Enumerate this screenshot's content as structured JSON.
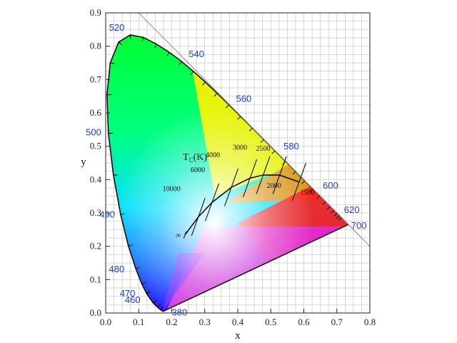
{
  "chart_data": {
    "type": "scatter",
    "xlabel": "x",
    "ylabel": "y",
    "xlim": [
      0.0,
      0.8
    ],
    "ylim": [
      0.0,
      0.9
    ],
    "x_ticks": [
      "0.0",
      "0.1",
      "0.2",
      "0.3",
      "0.4",
      "0.5",
      "0.6",
      "0.7",
      "0.8"
    ],
    "y_ticks": [
      "0.0",
      "0.1",
      "0.2",
      "0.3",
      "0.4",
      "0.5",
      "0.6",
      "0.7",
      "0.8",
      "0.9"
    ],
    "grid": true,
    "spectral_locus": [
      {
        "label": "380",
        "x": 0.1741,
        "y": 0.005
      },
      {
        "label": "460",
        "x": 0.144,
        "y": 0.0297
      },
      {
        "label": "470",
        "x": 0.1241,
        "y": 0.0578
      },
      {
        "label": "480",
        "x": 0.0913,
        "y": 0.1327
      },
      {
        "label": "490",
        "x": 0.0454,
        "y": 0.295
      },
      {
        "label": "500",
        "x": 0.0082,
        "y": 0.5384
      },
      {
        "label": "520",
        "x": 0.0743,
        "y": 0.8338
      },
      {
        "label": "540",
        "x": 0.2296,
        "y": 0.7543
      },
      {
        "label": "560",
        "x": 0.3731,
        "y": 0.6245
      },
      {
        "label": "580",
        "x": 0.5125,
        "y": 0.4866
      },
      {
        "label": "600",
        "x": 0.627,
        "y": 0.3725
      },
      {
        "label": "620",
        "x": 0.6915,
        "y": 0.3083
      },
      {
        "label": "700",
        "x": 0.7347,
        "y": 0.2653
      }
    ],
    "planckian_locus_title": "T",
    "planckian_locus_title_sub": "C",
    "planckian_locus_title_unit": "(K)",
    "planckian_locus": [
      {
        "label": "1500",
        "x": 0.5857,
        "y": 0.3931
      },
      {
        "label": "2000",
        "x": 0.5267,
        "y": 0.4133
      },
      {
        "label": "2500",
        "x": 0.477,
        "y": 0.4137
      },
      {
        "label": "3000",
        "x": 0.4369,
        "y": 0.4041
      },
      {
        "label": "4000",
        "x": 0.3805,
        "y": 0.3768
      },
      {
        "label": "6000",
        "x": 0.3221,
        "y": 0.3318
      },
      {
        "label": "10000",
        "x": 0.2807,
        "y": 0.2883
      },
      {
        "label": "∞",
        "x": 0.2399,
        "y": 0.2342
      }
    ]
  }
}
